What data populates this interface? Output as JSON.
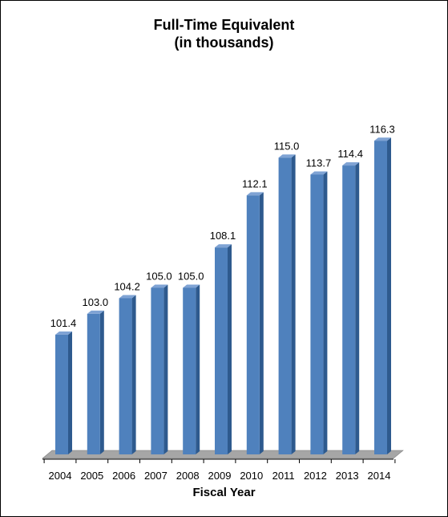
{
  "chart_data": {
    "type": "bar",
    "title": "Full-Time Equivalent",
    "subtitle": "(in thousands)",
    "xlabel": "Fiscal Year",
    "ylabel": "",
    "categories": [
      "2004",
      "2005",
      "2006",
      "2007",
      "2008",
      "2009",
      "2010",
      "2011",
      "2012",
      "2013",
      "2014"
    ],
    "values": [
      101.4,
      103.0,
      104.2,
      105.0,
      105.0,
      108.1,
      112.1,
      115.0,
      113.7,
      114.4,
      116.3
    ],
    "value_labels": [
      "101.4",
      "103.0",
      "104.2",
      "105.0",
      "105.0",
      "108.1",
      "112.1",
      "115.0",
      "113.7",
      "114.4",
      "116.3"
    ],
    "ylim": [
      92.2,
      117.8
    ],
    "grid": false,
    "legend": "none",
    "bar_color": "#4F81BD",
    "bar_side_color": "#2E5A8E",
    "bar_top_color": "#7FA3D4",
    "floor_color": "#A6A6A6"
  }
}
